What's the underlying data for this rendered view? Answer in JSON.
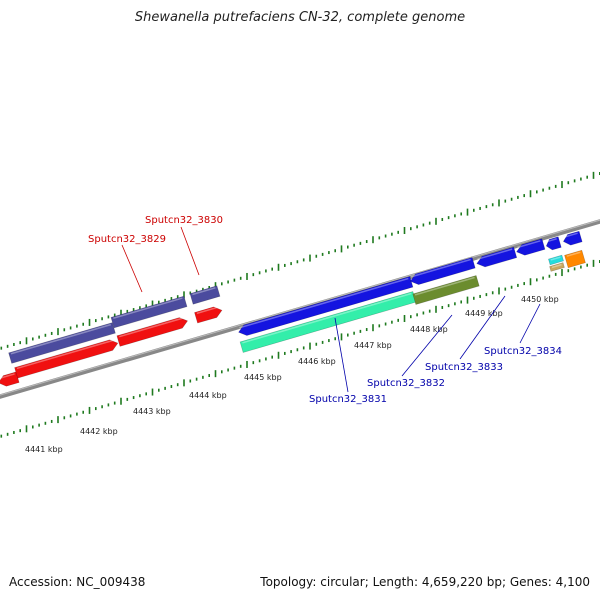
{
  "title": "Shewanella putrefaciens CN-32, complete genome",
  "footer": {
    "accession_label": "Accession:",
    "accession": "NC_009438",
    "topology_label": "Topology:",
    "topology": "circular",
    "length_label": "Length:",
    "length": "4,659,220 bp",
    "genes_label": "Genes:",
    "genes": "4,100"
  },
  "colors": {
    "backbone": "#888888",
    "ticks": "#1f7a1f",
    "forward_cds": "#1414e0",
    "forward_cds_dark": "#4b4b9e",
    "reverse_cds": "#f01010",
    "label_reverse": "#cc0000",
    "label_forward": "#0000aa",
    "cds_teal": "#33eeaa",
    "cds_olive": "#6b8c2e",
    "cds_cyan": "#22dddd",
    "cds_orange": "#ff8800",
    "cds_tan": "#c8a860"
  },
  "kbp_ticks": [
    {
      "label": "4441 kbp"
    },
    {
      "label": "4442 kbp"
    },
    {
      "label": "4443 kbp"
    },
    {
      "label": "4444 kbp"
    },
    {
      "label": "4445 kbp"
    },
    {
      "label": "4446 kbp"
    },
    {
      "label": "4447 kbp"
    },
    {
      "label": "4448 kbp"
    },
    {
      "label": "4449 kbp"
    },
    {
      "label": "4450 kbp"
    }
  ],
  "gene_labels": [
    {
      "name": "Sputcn32_3829",
      "strand": "reverse"
    },
    {
      "name": "Sputcn32_3830",
      "strand": "reverse"
    },
    {
      "name": "Sputcn32_3831",
      "strand": "forward"
    },
    {
      "name": "Sputcn32_3832",
      "strand": "forward"
    },
    {
      "name": "Sputcn32_3833",
      "strand": "forward"
    },
    {
      "name": "Sputcn32_3834",
      "strand": "forward"
    }
  ]
}
